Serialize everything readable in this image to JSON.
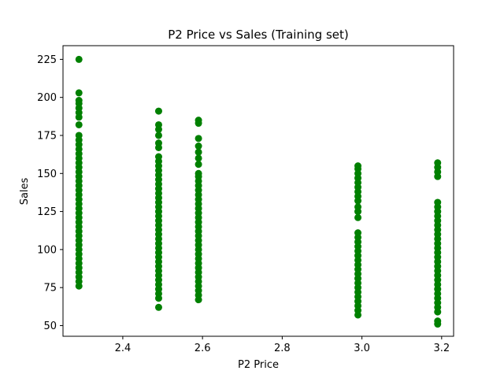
{
  "chart_data": {
    "type": "scatter",
    "title": "P2 Price vs Sales (Training set)",
    "xlabel": "P2 Price",
    "ylabel": "Sales",
    "xlim": [
      2.25,
      3.23
    ],
    "ylim": [
      43,
      234
    ],
    "xticks": [
      2.4,
      2.6,
      2.8,
      3.0,
      3.2
    ],
    "xtick_labels": [
      "2.4",
      "2.6",
      "2.8",
      "3.0",
      "3.2"
    ],
    "yticks": [
      50,
      75,
      100,
      125,
      150,
      175,
      200,
      225
    ],
    "ytick_labels": [
      "50",
      "75",
      "100",
      "125",
      "150",
      "175",
      "200",
      "225"
    ],
    "grid": false,
    "series": [
      {
        "color": "#008000",
        "marker": "circle",
        "points": [
          {
            "x": 2.29,
            "y": [
              76,
              79,
              82,
              85,
              88,
              91,
              94,
              97,
              100,
              103,
              106,
              109,
              112,
              115,
              118,
              121,
              124,
              127,
              130,
              133,
              136,
              139,
              142,
              145,
              148,
              151,
              154,
              157,
              160,
              163,
              166,
              169,
              172,
              175,
              182,
              187,
              190,
              193,
              196,
              198,
              203,
              225
            ]
          },
          {
            "x": 2.49,
            "y": [
              62,
              68,
              71,
              74,
              77,
              80,
              83,
              86,
              89,
              92,
              95,
              98,
              101,
              104,
              107,
              110,
              113,
              116,
              119,
              122,
              125,
              128,
              131,
              134,
              137,
              140,
              143,
              146,
              149,
              152,
              155,
              158,
              161,
              167,
              170,
              175,
              179,
              182,
              191
            ]
          },
          {
            "x": 2.59,
            "y": [
              67,
              70,
              73,
              76,
              79,
              82,
              85,
              88,
              91,
              94,
              97,
              100,
              103,
              106,
              109,
              112,
              115,
              118,
              121,
              124,
              127,
              130,
              133,
              136,
              139,
              142,
              145,
              148,
              150,
              156,
              160,
              164,
              168,
              173,
              183,
              185
            ]
          },
          {
            "x": 2.99,
            "y": [
              57,
              60,
              63,
              66,
              69,
              72,
              75,
              78,
              81,
              84,
              87,
              90,
              93,
              96,
              99,
              102,
              105,
              108,
              111,
              121,
              125,
              128,
              132,
              135,
              138,
              141,
              144,
              147,
              150,
              153,
              155
            ]
          },
          {
            "x": 3.19,
            "y": [
              51,
              53,
              59,
              62,
              65,
              68,
              71,
              74,
              77,
              80,
              83,
              86,
              89,
              92,
              95,
              98,
              101,
              104,
              107,
              110,
              113,
              116,
              119,
              122,
              125,
              128,
              131,
              148,
              151,
              154,
              157
            ]
          }
        ]
      }
    ]
  }
}
